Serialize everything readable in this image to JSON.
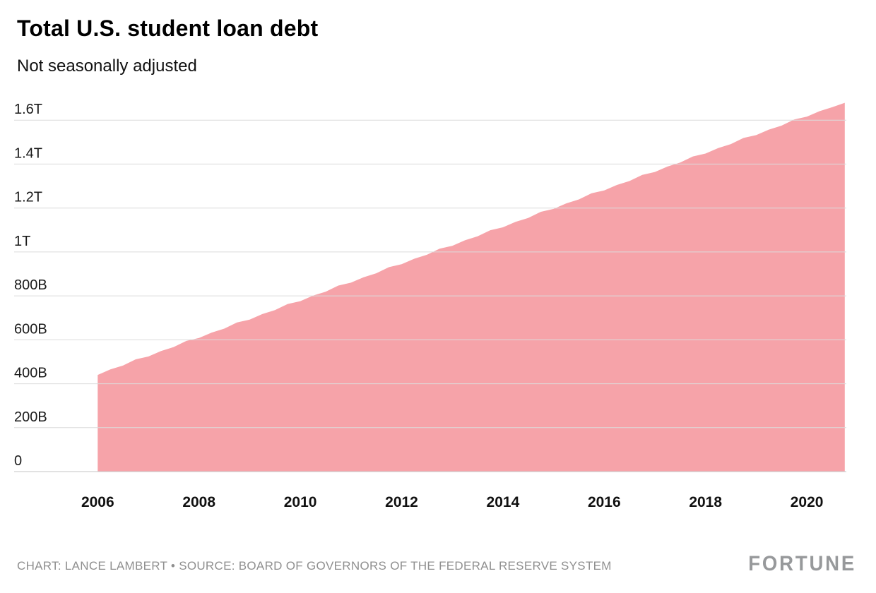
{
  "header": {
    "title": "Total U.S. student loan debt",
    "subtitle": "Not seasonally adjusted"
  },
  "footer": {
    "credit": "CHART: LANCE LAMBERT • SOURCE: BOARD OF GOVERNORS OF THE FEDERAL RESERVE SYSTEM",
    "brand": "FORTUNE"
  },
  "chart_data": {
    "type": "area",
    "title": "Total U.S. student loan debt",
    "subtitle": "Not seasonally adjusted",
    "units": "USD (B = billions, T = trillions)",
    "area_color": "#f6a3a9",
    "grid": true,
    "legend": "none",
    "background": "#ffffff",
    "xlim": [
      2004.35,
      2020.78
    ],
    "ylim": [
      0,
      1755
    ],
    "x_ticks": [
      2006,
      2008,
      2010,
      2012,
      2014,
      2016,
      2018,
      2020
    ],
    "y_ticks": [
      {
        "value": 0,
        "label": "0"
      },
      {
        "value": 200,
        "label": "200B"
      },
      {
        "value": 400,
        "label": "400B"
      },
      {
        "value": 600,
        "label": "600B"
      },
      {
        "value": 800,
        "label": "800B"
      },
      {
        "value": 1000,
        "label": "1T"
      },
      {
        "value": 1200,
        "label": "1.2T"
      },
      {
        "value": 1400,
        "label": "1.4T"
      },
      {
        "value": 1600,
        "label": "1.6T"
      }
    ],
    "series": [
      {
        "name": "Total U.S. student loan debt (billions USD, quarterly)",
        "x": [
          2006,
          2006.25,
          2006.5,
          2006.75,
          2007,
          2007.25,
          2007.5,
          2007.75,
          2008,
          2008.25,
          2008.5,
          2008.75,
          2009,
          2009.25,
          2009.5,
          2009.75,
          2010,
          2010.25,
          2010.5,
          2010.75,
          2011,
          2011.25,
          2011.5,
          2011.75,
          2012,
          2012.25,
          2012.5,
          2012.75,
          2013,
          2013.25,
          2013.5,
          2013.75,
          2014,
          2014.25,
          2014.5,
          2014.75,
          2015,
          2015.25,
          2015.5,
          2015.75,
          2016,
          2016.25,
          2016.5,
          2016.75,
          2017,
          2017.25,
          2017.5,
          2017.75,
          2018,
          2018.25,
          2018.5,
          2018.75,
          2019,
          2019.25,
          2019.5,
          2019.75,
          2020,
          2020.25,
          2020.5,
          2020.75
        ],
        "values": [
          440,
          465,
          483,
          511,
          524,
          549,
          567,
          595,
          608,
          633,
          651,
          679,
          692,
          717,
          735,
          763,
          776,
          801,
          819,
          847,
          860,
          885,
          903,
          931,
          944,
          969,
          987,
          1015,
          1028,
          1053,
          1071,
          1099,
          1112,
          1137,
          1155,
          1183,
          1196,
          1221,
          1239,
          1267,
          1280,
          1305,
          1323,
          1351,
          1364,
          1389,
          1407,
          1435,
          1448,
          1473,
          1491,
          1519,
          1532,
          1557,
          1575,
          1603,
          1616,
          1641,
          1659,
          1679
        ]
      }
    ]
  }
}
